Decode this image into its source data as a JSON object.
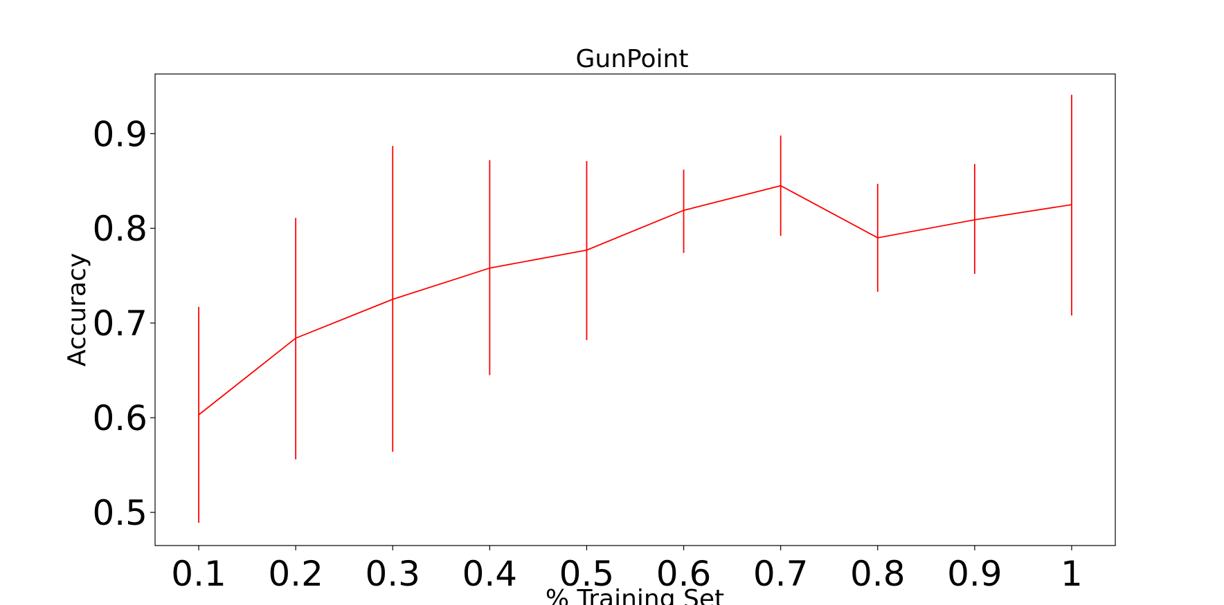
{
  "chart_data": {
    "type": "line",
    "title": "GunPoint",
    "xlabel": "% Training Set",
    "ylabel": "Accuracy",
    "x": [
      0.1,
      0.2,
      0.3,
      0.4,
      0.5,
      0.6,
      0.7,
      0.8,
      0.9,
      1
    ],
    "x_tick_labels": [
      "0.1",
      "0.2",
      "0.3",
      "0.4",
      "0.5",
      "0.6",
      "0.7",
      "0.8",
      "0.9",
      "1"
    ],
    "y_ticks": [
      0.5,
      0.6,
      0.7,
      0.8,
      0.9
    ],
    "y_tick_labels": [
      "0.5",
      "0.6",
      "0.7",
      "0.8",
      "0.9"
    ],
    "xlim": [
      0.055,
      1.045
    ],
    "ylim": [
      0.465,
      0.963
    ],
    "series": [
      {
        "color": "#ff0000",
        "values": [
          0.603,
          0.684,
          0.725,
          0.758,
          0.777,
          0.819,
          0.845,
          0.79,
          0.809,
          0.825
        ],
        "error_low": [
          0.489,
          0.556,
          0.564,
          0.645,
          0.682,
          0.774,
          0.792,
          0.733,
          0.752,
          0.708
        ],
        "error_high": [
          0.717,
          0.811,
          0.887,
          0.872,
          0.871,
          0.862,
          0.898,
          0.847,
          0.868,
          0.941
        ]
      }
    ],
    "grid": false,
    "legend": "none"
  }
}
